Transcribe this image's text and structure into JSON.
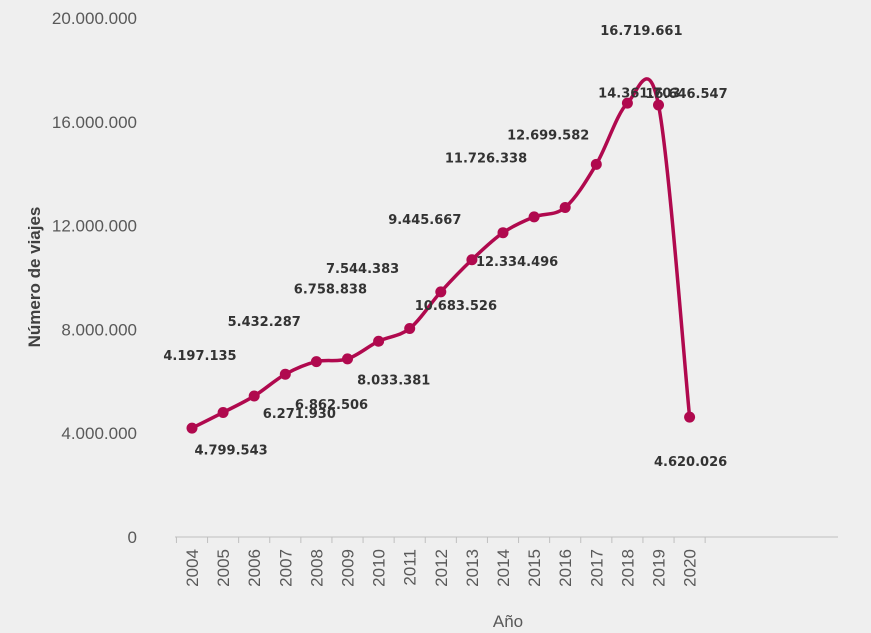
{
  "chart_data": {
    "type": "line",
    "title": "",
    "xlabel": "Año",
    "ylabel": "Número de viajes",
    "ylim": [
      0,
      20000000
    ],
    "y_ticks": [
      "0",
      "4.000.000",
      "8.000.000",
      "12.000.000",
      "16.000.000",
      "20.000.000"
    ],
    "y_tick_values": [
      0,
      4000000,
      8000000,
      12000000,
      16000000,
      20000000
    ],
    "grid": false,
    "legend": "none",
    "series_color": "#b0094e",
    "categories": [
      "2004",
      "2005",
      "2006",
      "2007",
      "2008",
      "2009",
      "2010",
      "2011",
      "2012",
      "2013",
      "2014",
      "2015",
      "2016",
      "2017",
      "2018",
      "2019",
      "2020"
    ],
    "series": [
      {
        "values": [
          4197135,
          4799543,
          5432287,
          6271930,
          6758838,
          6862506,
          7544383,
          8033381,
          9445667,
          10683526,
          11726338,
          12334496,
          12699582,
          14361703,
          16719661,
          16646547,
          4620026
        ],
        "labels": [
          "4.197.135",
          "4.799.543",
          "5.432.287",
          "6.271.930",
          "6.758.838",
          "6.862.506",
          "7.544.383",
          "8.033.381",
          "9.445.667",
          "10.683.526",
          "11.726.338",
          "12.334.496",
          "12.699.582",
          "14.361.703",
          "16.719.661",
          "16.646.547",
          "4.620.026"
        ]
      }
    ]
  }
}
